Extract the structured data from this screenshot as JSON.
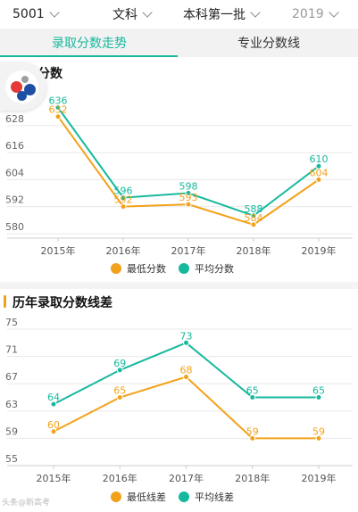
{
  "filters": [
    {
      "label": "5001",
      "muted": false
    },
    {
      "label": "文科",
      "muted": false
    },
    {
      "label": "本科第一批",
      "muted": false
    },
    {
      "label": "2019",
      "muted": true
    }
  ],
  "tabs": [
    {
      "label": "录取分数走势",
      "active": true
    },
    {
      "label": "专业分数线",
      "active": false
    }
  ],
  "colors": {
    "accent": "#16b99e",
    "orange": "#f2a21a"
  },
  "section1": {
    "title": "录取分数"
  },
  "section2": {
    "title": "历年录取分数线差"
  },
  "watermark": "头条@新高考",
  "chart_data": [
    {
      "type": "line",
      "title": "录取分数",
      "categories": [
        "2015年",
        "2016年",
        "2017年",
        "2018年",
        "2019年"
      ],
      "yticks": [
        580,
        592,
        604,
        616,
        628
      ],
      "ylim": [
        578,
        641
      ],
      "series": [
        {
          "name": "最低分数",
          "color": "#f2a21a",
          "values": [
            632,
            592,
            593,
            584,
            604
          ],
          "labels": [
            "632",
            "592",
            "593",
            "584",
            "604"
          ]
        },
        {
          "name": "平均分数",
          "color": "#16b99e",
          "values": [
            636,
            596,
            598,
            588,
            610
          ],
          "labels": [
            "636",
            "596",
            "598",
            "588",
            "610"
          ]
        }
      ],
      "legend_position": "bottom"
    },
    {
      "type": "line",
      "title": "历年录取分数线差",
      "categories": [
        "2015年",
        "2016年",
        "2017年",
        "2018年",
        "2019年"
      ],
      "yticks": [
        55,
        59,
        63,
        67,
        71,
        75
      ],
      "ylim": [
        55,
        75
      ],
      "series": [
        {
          "name": "最低线差",
          "color": "#f2a21a",
          "values": [
            60,
            65,
            68,
            59,
            59
          ],
          "labels": [
            "60",
            "65",
            "68",
            "59",
            "59"
          ]
        },
        {
          "name": "平均线差",
          "color": "#16b99e",
          "values": [
            64,
            69,
            73,
            65,
            65
          ],
          "labels": [
            "64",
            "69",
            "73",
            "65",
            "65"
          ]
        }
      ],
      "legend_position": "bottom"
    }
  ]
}
